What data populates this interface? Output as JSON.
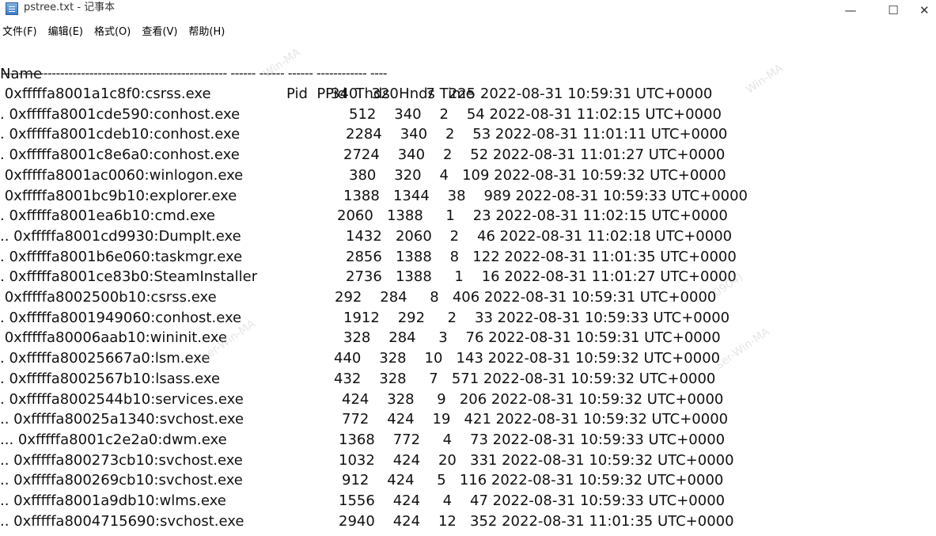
{
  "window": {
    "title": "pstree.txt - 记事本",
    "minimize_label": "—",
    "maximize_label": "☐",
    "close_label": "✕"
  },
  "menu": [
    {
      "label": "文件(F)"
    },
    {
      "label": "编辑(E)"
    },
    {
      "label": "格式(O)"
    },
    {
      "label": "查看(V)"
    },
    {
      "label": "帮助(H)"
    }
  ],
  "content": {
    "header_name": "Name",
    "header_cols": "Pid  PPid  Thds  Hnds Time",
    "separator": "------------------------------------------------------ ------ ------ ------ ------------ ----",
    "rows": [
      {
        "name": " 0xfffffa8001a1c8f0:csrss.exe",
        "cols": "340   320      7   225 2022-08-31 10:59:31 UTC+0000",
        "offset": 418
      },
      {
        "name": ". 0xfffffa8001cde590:conhost.exe",
        "cols": "512    340    2    54 2022-08-31 11:02:15 UTC+0000",
        "offset": 441
      },
      {
        "name": ". 0xfffffa8001cdeb10:conhost.exe",
        "cols": "2284    340    2    53 2022-08-31 11:01:11 UTC+0000",
        "offset": 437
      },
      {
        "name": ". 0xfffffa8001c8e6a0:conhost.exe",
        "cols": "2724    340    2    52 2022-08-31 11:01:27 UTC+0000",
        "offset": 434
      },
      {
        "name": " 0xfffffa8001ac0060:winlogon.exe",
        "cols": "380    320    4   109 2022-08-31 10:59:32 UTC+0000",
        "offset": 441
      },
      {
        "name": " 0xfffffa8001bc9b10:explorer.exe",
        "cols": "1388   1344    38    989 2022-08-31 10:59:33 UTC+0000",
        "offset": 434
      },
      {
        "name": ". 0xfffffa8001ea6b10:cmd.exe",
        "cols": "2060   1388     1    23 2022-08-31 11:02:15 UTC+0000",
        "offset": 426
      },
      {
        "name": ".. 0xfffffa8001cd9930:DumpIt.exe",
        "cols": "1432   2060    2    46 2022-08-31 11:02:18 UTC+0000",
        "offset": 437
      },
      {
        "name": ". 0xfffffa8001b6e060:taskmgr.exe",
        "cols": "2856   1388    8   122 2022-08-31 11:01:35 UTC+0000",
        "offset": 437
      },
      {
        "name": ". 0xfffffa8001ce83b0:SteamInstaller",
        "cols": "2736   1388     1    16 2022-08-31 11:01:27 UTC+0000",
        "offset": 437
      },
      {
        "name": " 0xfffffa8002500b10:csrss.exe",
        "cols": "292    284     8   406 2022-08-31 10:59:31 UTC+0000",
        "offset": 423
      },
      {
        "name": ". 0xfffffa8001949060:conhost.exe",
        "cols": "1912    292     2    33 2022-08-31 10:59:33 UTC+0000",
        "offset": 434
      },
      {
        "name": " 0xfffffa80006aab10:wininit.exe",
        "cols": "328    284     3    76 2022-08-31 10:59:31 UTC+0000",
        "offset": 434
      },
      {
        "name": ". 0xfffffa80025667a0:lsm.exe",
        "cols": "440    328    10   143 2022-08-31 10:59:32 UTC+0000",
        "offset": 422
      },
      {
        "name": ". 0xfffffa8002567b10:lsass.exe",
        "cols": "432    328     7   571 2022-08-31 10:59:32 UTC+0000",
        "offset": 422
      },
      {
        "name": ". 0xfffffa8002544b10:services.exe",
        "cols": "424    328     9   206 2022-08-31 10:59:32 UTC+0000",
        "offset": 432
      },
      {
        "name": ".. 0xfffffa80025a1340:svchost.exe",
        "cols": "772    424    19   421 2022-08-31 10:59:32 UTC+0000",
        "offset": 432
      },
      {
        "name": "... 0xfffffa8001c2e2a0:dwm.exe",
        "cols": "1368    772     4    73 2022-08-31 10:59:33 UTC+0000",
        "offset": 428
      },
      {
        "name": ".. 0xfffffa800273cb10:svchost.exe",
        "cols": "1032    424    20   331 2022-08-31 10:59:32 UTC+0000",
        "offset": 428
      },
      {
        "name": ".. 0xfffffa800269cb10:svchost.exe",
        "cols": "912    424     5   116 2022-08-31 10:59:32 UTC+0000",
        "offset": 432
      },
      {
        "name": ".. 0xfffffa8001a9db10:wlms.exe",
        "cols": "1556    424     4    47 2022-08-31 10:59:33 UTC+0000",
        "offset": 428
      },
      {
        "name": ".. 0xfffffa8004715690:svchost.exe",
        "cols": "2940    424    12   352 2022-08-31 11:01:35 UTC+0000",
        "offset": 428
      }
    ]
  },
  "watermark": [
    "Win-MA",
    "ser-Win-MA",
    "0904)"
  ]
}
